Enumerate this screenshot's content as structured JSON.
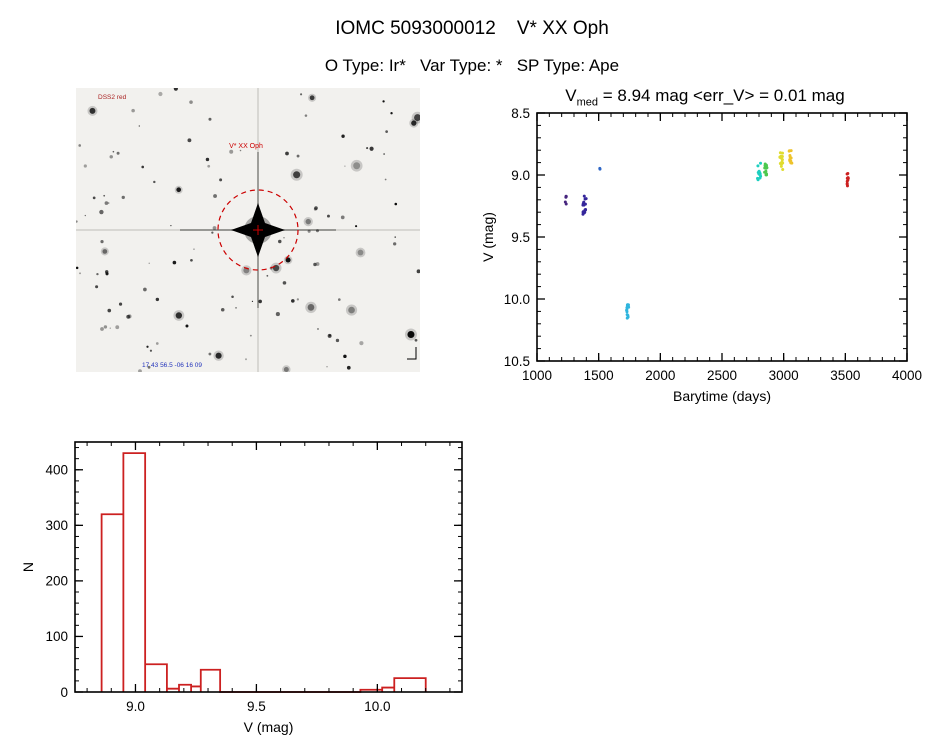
{
  "page": {
    "title": "IOMC 5093000012    V* XX Oph",
    "subtitle": "O Type: Ir*   Var Type: *   SP Type: Ape"
  },
  "finding_chart": {
    "target_label": "V* XX Oph",
    "corner_label": "DSS2 red",
    "bottom_label": "17 43 56.5  -06 16 09",
    "aperture_color": "#cc0000"
  },
  "chart_data": [
    {
      "id": "lightcurve",
      "type": "scatter",
      "title": "V_med = 8.94 mag <err_V> = 0.01 mag",
      "title_parts": {
        "base": "V",
        "sub": "med",
        "rest": " = 8.94 mag <err_V> = 0.01 mag"
      },
      "xlabel": "Barytime (days)",
      "ylabel": "V (mag)",
      "xlim": [
        1000,
        4000
      ],
      "ylim": [
        10.5,
        8.5
      ],
      "xticks": [
        1000,
        1500,
        2000,
        2500,
        3000,
        3500,
        4000
      ],
      "yticks": [
        "8.5",
        "9.0",
        "9.5",
        "10.0",
        "10.5"
      ],
      "x_minor_step": 100,
      "y_minor_step": 0.1,
      "clusters": [
        {
          "x": 1230,
          "dx": 8,
          "y1": 9.15,
          "y2": 9.24,
          "n": 5,
          "color": "#46257e"
        },
        {
          "x": 1385,
          "dx": 14,
          "y1": 9.17,
          "y2": 9.32,
          "n": 16,
          "color": "#35269b"
        },
        {
          "x": 1510,
          "dx": 4,
          "y1": 8.93,
          "y2": 8.97,
          "n": 2,
          "color": "#2e66c6"
        },
        {
          "x": 1735,
          "dx": 9,
          "y1": 10.03,
          "y2": 10.16,
          "n": 18,
          "color": "#2fb5de"
        },
        {
          "x": 2800,
          "dx": 14,
          "y1": 8.9,
          "y2": 9.04,
          "n": 16,
          "color": "#1dcfc0"
        },
        {
          "x": 2855,
          "dx": 10,
          "y1": 8.88,
          "y2": 9.0,
          "n": 12,
          "color": "#4cc84e"
        },
        {
          "x": 2980,
          "dx": 14,
          "y1": 8.82,
          "y2": 8.96,
          "n": 16,
          "color": "#e0dc30"
        },
        {
          "x": 3055,
          "dx": 12,
          "y1": 8.8,
          "y2": 8.93,
          "n": 14,
          "color": "#eec32b"
        },
        {
          "x": 3520,
          "dx": 6,
          "y1": 8.97,
          "y2": 9.09,
          "n": 10,
          "color": "#cc2020"
        }
      ]
    },
    {
      "id": "histogram",
      "type": "bar",
      "xlabel": "V (mag)",
      "ylabel": "N",
      "xlim": [
        8.75,
        10.35
      ],
      "ylim": [
        0,
        450
      ],
      "xticks": [
        "9.0",
        "9.5",
        "10.0"
      ],
      "yticks": [
        0,
        100,
        200,
        300,
        400
      ],
      "x_minor_step": 0.1,
      "y_minor_step": 20,
      "bar_color": "#cc2020",
      "bins": [
        {
          "x1": 8.86,
          "x2": 8.95,
          "n": 320
        },
        {
          "x1": 8.95,
          "x2": 9.04,
          "n": 430
        },
        {
          "x1": 9.04,
          "x2": 9.13,
          "n": 50
        },
        {
          "x1": 9.13,
          "x2": 9.18,
          "n": 6
        },
        {
          "x1": 9.18,
          "x2": 9.23,
          "n": 13
        },
        {
          "x1": 9.23,
          "x2": 9.27,
          "n": 10
        },
        {
          "x1": 9.27,
          "x2": 9.35,
          "n": 40
        },
        {
          "x1": 9.93,
          "x2": 10.02,
          "n": 4
        },
        {
          "x1": 10.02,
          "x2": 10.07,
          "n": 8
        },
        {
          "x1": 10.07,
          "x2": 10.2,
          "n": 25
        }
      ]
    }
  ]
}
